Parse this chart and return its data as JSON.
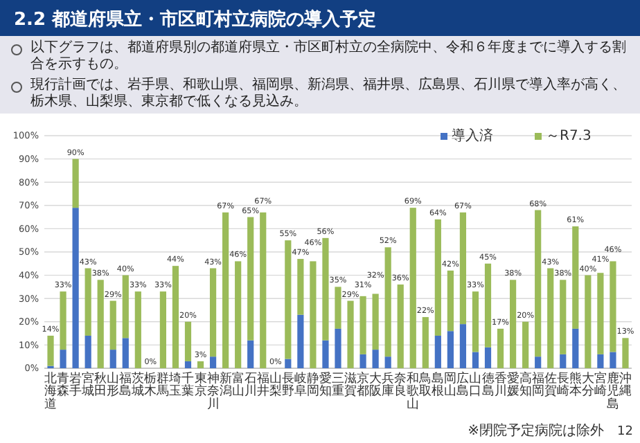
{
  "chart_data": {
    "type": "bar",
    "stacked": true,
    "title": "2.2 都道府県立・市区町村立病院の導入予定",
    "annotations": [
      "以下グラフは、都道府県別の都道府県立・市区町村立の全病院中、令和６年度までに導入する割合を示すもの。",
      "現行計画では、岩手県、和歌山県、福岡県、新潟県、福井県、広島県、石川県で導入率が高く、栃木県、山梨県、東京都で低くなる見込み。",
      "※閉院予定病院は除外",
      "12"
    ],
    "categories": [
      "北海道",
      "青森",
      "岩手",
      "宮城",
      "秋田",
      "山形",
      "福島",
      "茨城",
      "栃木",
      "群馬",
      "埼玉",
      "千葉",
      "東京",
      "神奈川",
      "新潟",
      "富山",
      "石川",
      "福井",
      "山梨",
      "長野",
      "岐阜",
      "静岡",
      "愛知",
      "三重",
      "滋賀",
      "京都",
      "大阪",
      "兵庫",
      "奈良",
      "和歌山",
      "鳥取",
      "島根",
      "岡山",
      "広島",
      "山口",
      "徳島",
      "香川",
      "愛媛",
      "高知",
      "福岡",
      "佐賀",
      "長崎",
      "熊本",
      "大分",
      "宮崎",
      "鹿児島",
      "沖縄"
    ],
    "series": [
      {
        "name": "導入済",
        "color": "#4472c4",
        "values": [
          1,
          8,
          69,
          14,
          0,
          8,
          13,
          0,
          0,
          0,
          0,
          3,
          0,
          5,
          0,
          0,
          12,
          0,
          0,
          4,
          23,
          0,
          12,
          17,
          0,
          6,
          8,
          5,
          0,
          0,
          0,
          14,
          16,
          19,
          7,
          9,
          0,
          0,
          0,
          5,
          0,
          6,
          17,
          0,
          6,
          7,
          0
        ]
      },
      {
        "name": "～R7.3",
        "color": "#9bbb59",
        "values": [
          13,
          25,
          21,
          29,
          38,
          21,
          27,
          33,
          0,
          33,
          44,
          17,
          3,
          38,
          67,
          46,
          53,
          67,
          0,
          51,
          24,
          46,
          44,
          18,
          29,
          25,
          24,
          47,
          36,
          69,
          22,
          50,
          26,
          48,
          26,
          36,
          17,
          38,
          20,
          63,
          43,
          32,
          44,
          40,
          35,
          39,
          13
        ]
      }
    ],
    "totals": [
      "14%",
      "33%",
      "90%",
      "43%",
      "38%",
      "29%",
      "40%",
      "33%",
      "0%",
      "33%",
      "44%",
      "20%",
      "3%",
      "43%",
      "67%",
      "46%",
      "65%",
      "67%",
      "0%",
      "55%",
      "47%",
      "46%",
      "56%",
      "35%",
      "29%",
      "31%",
      "32%",
      "52%",
      "36%",
      "69%",
      "22%",
      "64%",
      "42%",
      "67%",
      "33%",
      "45%",
      "17%",
      "38%",
      "20%",
      "68%",
      "43%",
      "38%",
      "61%",
      "40%",
      "41%",
      "46%",
      "13%"
    ],
    "ylim": [
      0,
      100
    ],
    "yticks": [
      {
        "value": 0,
        "label": "0%"
      },
      {
        "value": 10,
        "label": "10%"
      },
      {
        "value": 20,
        "label": "20%"
      },
      {
        "value": 30,
        "label": "30%"
      },
      {
        "value": 40,
        "label": "40%"
      },
      {
        "value": 50,
        "label": "50%"
      },
      {
        "value": 60,
        "label": "60%"
      },
      {
        "value": 70,
        "label": "70%"
      },
      {
        "value": 80,
        "label": "80%"
      },
      {
        "value": 90,
        "label": "90%"
      },
      {
        "value": 100,
        "label": "100%"
      }
    ],
    "grid": "y",
    "legend": "top right"
  }
}
